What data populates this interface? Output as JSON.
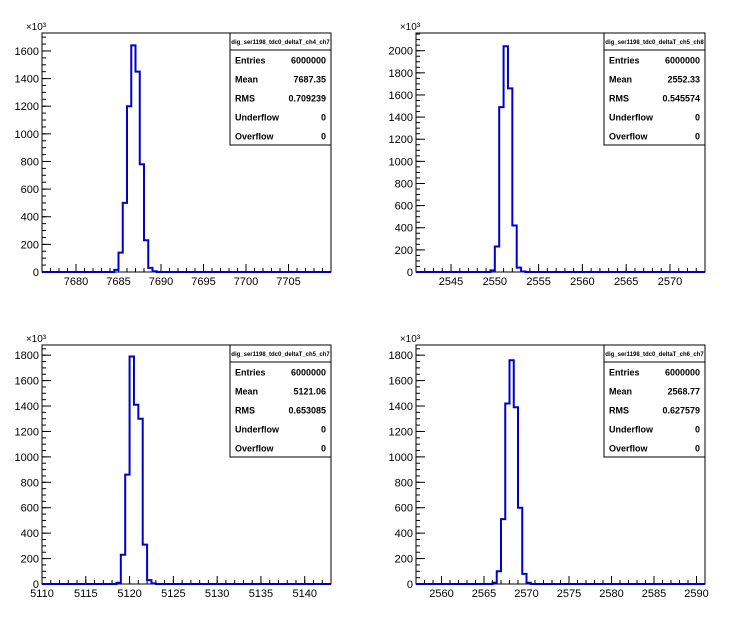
{
  "chart_data": [
    {
      "type": "bar",
      "hist_name": "dig_ser1198_tdc0_deltaT_ch4_ch7",
      "multiplier_label": "×10³",
      "xlim": [
        7676,
        7710
      ],
      "ylim": [
        0,
        1730
      ],
      "x_ticks": [
        7680,
        7685,
        7690,
        7695,
        7700,
        7705
      ],
      "y_ticks": [
        0,
        200,
        400,
        600,
        800,
        1000,
        1200,
        1400,
        1600
      ],
      "bin_edges": [
        7684.5,
        7685,
        7685.5,
        7686,
        7686.5,
        7687,
        7687.5,
        7688,
        7688.5,
        7689,
        7689.5,
        7690,
        7690.5
      ],
      "values": [
        15,
        140,
        500,
        1200,
        1640,
        1450,
        780,
        230,
        30,
        5,
        0,
        0
      ],
      "stats": [
        {
          "label": "Entries",
          "value": "6000000"
        },
        {
          "label": "Mean",
          "value": "7687.35"
        },
        {
          "label": "RMS",
          "value": "0.709239"
        },
        {
          "label": "Underflow",
          "value": "0"
        },
        {
          "label": "Overflow",
          "value": "0"
        }
      ]
    },
    {
      "type": "bar",
      "hist_name": "dig_ser1198_tdc0_deltaT_ch5_ch8",
      "multiplier_label": "×10³",
      "xlim": [
        2541,
        2574
      ],
      "ylim": [
        0,
        2160
      ],
      "x_ticks": [
        2545,
        2550,
        2555,
        2560,
        2565,
        2570
      ],
      "y_ticks": [
        0,
        200,
        400,
        600,
        800,
        1000,
        1200,
        1400,
        1600,
        1800,
        2000
      ],
      "bin_edges": [
        2549.5,
        2550,
        2550.5,
        2551,
        2551.5,
        2552,
        2552.5,
        2553,
        2553.5,
        2554,
        2554.5
      ],
      "values": [
        15,
        230,
        1490,
        2040,
        1660,
        420,
        40,
        5,
        0,
        0
      ],
      "stats": [
        {
          "label": "Entries",
          "value": "6000000"
        },
        {
          "label": "Mean",
          "value": "2552.33"
        },
        {
          "label": "RMS",
          "value": "0.545574"
        },
        {
          "label": "Underflow",
          "value": "0"
        },
        {
          "label": "Overflow",
          "value": "0"
        }
      ]
    },
    {
      "type": "bar",
      "hist_name": "dig_ser1198_tdc0_deltaT_ch5_ch7",
      "multiplier_label": "×10³",
      "xlim": [
        5110,
        5143
      ],
      "ylim": [
        0,
        1880
      ],
      "x_ticks": [
        5110,
        5115,
        5120,
        5125,
        5130,
        5135,
        5140
      ],
      "y_ticks": [
        0,
        200,
        400,
        600,
        800,
        1000,
        1200,
        1400,
        1600,
        1800
      ],
      "bin_edges": [
        5118.5,
        5119,
        5119.5,
        5120,
        5120.5,
        5121,
        5121.5,
        5122,
        5122.5,
        5123,
        5123.5,
        5124
      ],
      "values": [
        10,
        230,
        860,
        1790,
        1410,
        1300,
        310,
        30,
        5,
        0,
        0
      ],
      "stats": [
        {
          "label": "Entries",
          "value": "6000000"
        },
        {
          "label": "Mean",
          "value": "5121.06"
        },
        {
          "label": "RMS",
          "value": "0.653085"
        },
        {
          "label": "Underflow",
          "value": "0"
        },
        {
          "label": "Overflow",
          "value": "0"
        }
      ]
    },
    {
      "type": "bar",
      "hist_name": "dig_ser1198_tdc0_deltaT_ch6_ch7",
      "multiplier_label": "×10³",
      "xlim": [
        2557,
        2591
      ],
      "ylim": [
        0,
        1880
      ],
      "x_ticks": [
        2560,
        2565,
        2570,
        2575,
        2580,
        2585,
        2590
      ],
      "y_ticks": [
        0,
        200,
        400,
        600,
        800,
        1000,
        1200,
        1400,
        1600,
        1800
      ],
      "bin_edges": [
        2566,
        2566.5,
        2567,
        2567.5,
        2568,
        2568.5,
        2569,
        2569.5,
        2570,
        2570.5,
        2571,
        2571.5
      ],
      "values": [
        10,
        100,
        510,
        1420,
        1760,
        1390,
        600,
        80,
        10,
        0,
        0
      ],
      "stats": [
        {
          "label": "Entries",
          "value": "6000000"
        },
        {
          "label": "Mean",
          "value": "2568.77"
        },
        {
          "label": "RMS",
          "value": "0.627579"
        },
        {
          "label": "Underflow",
          "value": "0"
        },
        {
          "label": "Overflow",
          "value": "0"
        }
      ]
    }
  ]
}
